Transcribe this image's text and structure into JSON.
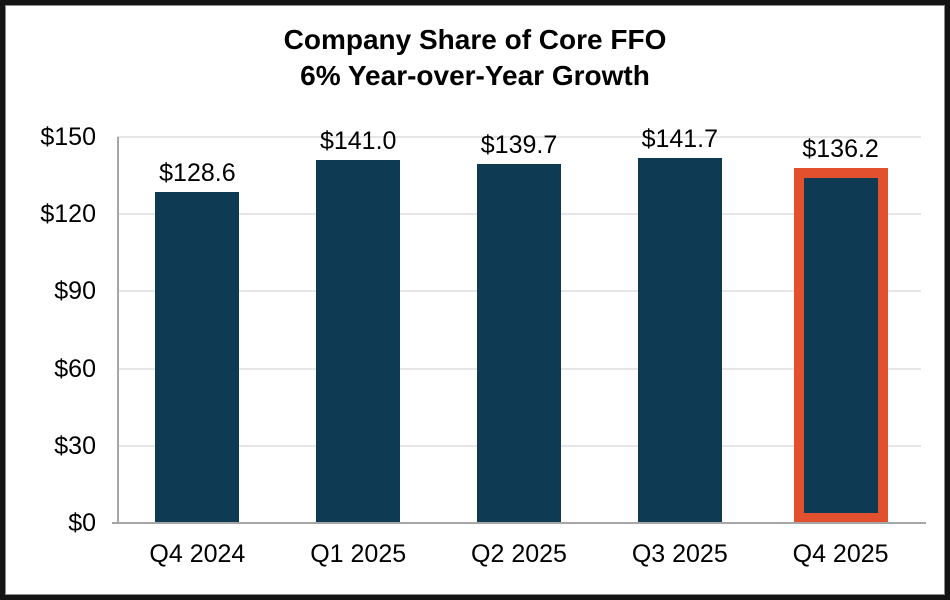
{
  "chart_data": {
    "type": "bar",
    "title": "Company Share of Core FFO",
    "subtitle": "6% Year-over-Year Growth",
    "categories": [
      "Q4 2024",
      "Q1 2025",
      "Q2 2025",
      "Q3 2025",
      "Q4 2025"
    ],
    "values": [
      128.6,
      141.0,
      139.7,
      141.7,
      136.2
    ],
    "value_labels": [
      "$128.6",
      "$141.0",
      "$139.7",
      "$141.7",
      "$136.2"
    ],
    "y_tick_labels": [
      "$150",
      "$120",
      "$90",
      "$60",
      "$30",
      "$0"
    ],
    "y_tick_values": [
      150,
      120,
      90,
      60,
      30,
      0
    ],
    "ylim": [
      0,
      150
    ],
    "y_tick_step": 30,
    "highlighted_index": 4,
    "grid": true,
    "legend": "none",
    "colors": {
      "bar": "#0E3A53",
      "highlight_border": "#E2502E",
      "gridline": "#E6E6E6",
      "axis": "#A6A6A6",
      "text": "#000000",
      "frame": "#141414",
      "background": "#FFFFFF"
    }
  }
}
